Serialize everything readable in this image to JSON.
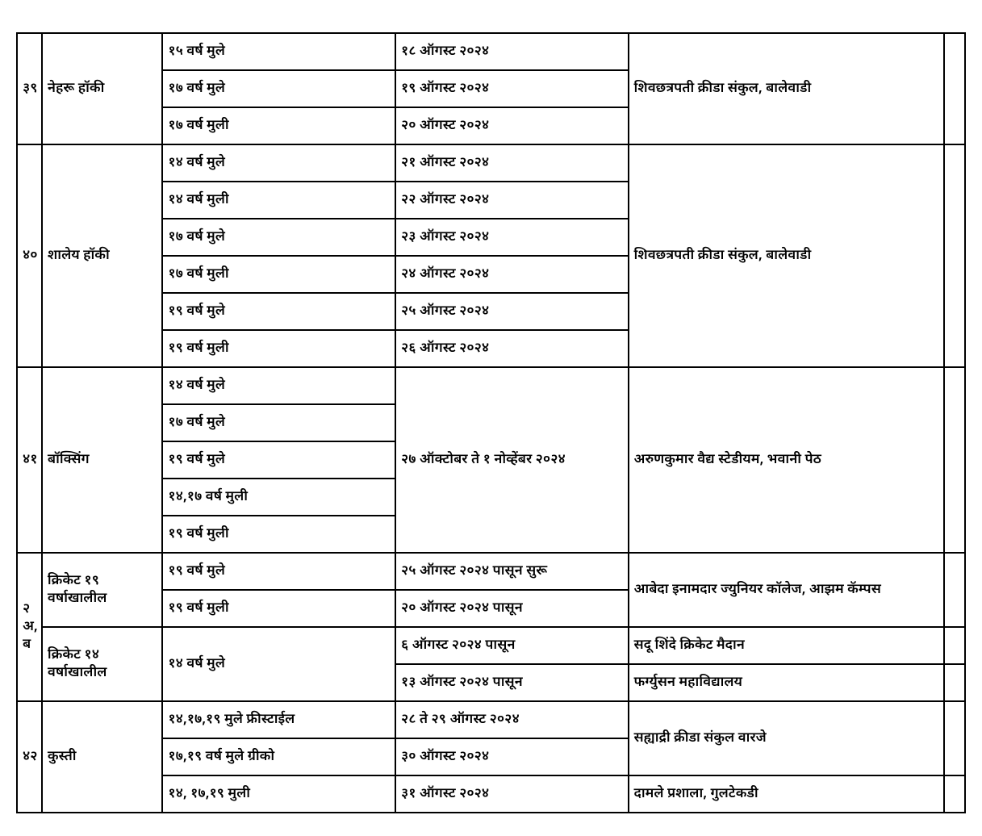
{
  "table": {
    "rows": [
      {
        "sr": "३९",
        "sport": "नेहरू  हॉकी",
        "sr_rowspan": 3,
        "sport_rowspan": 3,
        "sub": [
          {
            "age": "१५ वर्ष मुले",
            "date": "१८ ऑगस्ट २०२४",
            "venue": "शिवछत्रपती क्रीडा संकुल, बालेवाडी",
            "venue_rowspan": 3
          },
          {
            "age": "१७ वर्ष मुले",
            "date": "१९  ऑगस्ट २०२४"
          },
          {
            "age": "१७ वर्ष मुली",
            "date": "२०  ऑगस्ट २०२४"
          }
        ]
      },
      {
        "sr": "४०",
        "sport": "शालेय हॉकी",
        "sr_rowspan": 6,
        "sport_rowspan": 6,
        "sub": [
          {
            "age": "१४ वर्ष मुले",
            "date": "२१  ऑगस्ट २०२४",
            "venue": "शिवछत्रपती क्रीडा संकुल, बालेवाडी",
            "venue_rowspan": 6
          },
          {
            "age": "१४ वर्ष मुली",
            "date": "२२  ऑगस्ट २०२४"
          },
          {
            "age": "१७ वर्ष मुले",
            "date": "२३  ऑगस्ट २०२४"
          },
          {
            "age": "१७ वर्ष मुली",
            "date": "२४  ऑगस्ट २०२४"
          },
          {
            "age": "१९  वर्ष मुले",
            "date": "२५  ऑगस्ट २०२४"
          },
          {
            "age": "१९  वर्ष मुली",
            "date": "२६  ऑगस्ट २०२४"
          }
        ]
      },
      {
        "sr": "४१",
        "sport": "बॉक्सिंग",
        "sr_rowspan": 5,
        "sport_rowspan": 5,
        "sub": [
          {
            "age": "१४ वर्ष मुले",
            "date": "२७   ऑक्टोबर  ते १ नोव्हेंबर २०२४",
            "date_rowspan": 5,
            "venue": "अरुणकुमार वैद्य स्टेडीयम, भवानी पेठ",
            "venue_rowspan": 5
          },
          {
            "age": "१७ वर्ष मुले"
          },
          {
            "age": "१९ वर्ष मुले"
          },
          {
            "age": "१४,१७ वर्ष मुली"
          },
          {
            "age": "१९ वर्ष मुली"
          }
        ]
      },
      {
        "sr": "२ अ, ब",
        "sport_entries": [
          {
            "label": "क्रिकेट  १९ वर्षाखालील",
            "rowspan": 2
          },
          {
            "label": "क्रिकेट  १४ वर्षाखालील",
            "rowspan": 2
          }
        ],
        "sr_rowspan": 4,
        "sub": [
          {
            "age": "१९ वर्ष मुले",
            "date": "२५ ऑगस्ट २०२४ पासून सुरू",
            "venue": "आबेदा इनामदार ज्युनियर कॉलेज, आझम कॅम्पस",
            "venue_rowspan": 2
          },
          {
            "age": "१९ वर्ष मुली",
            "date": "२०  ऑगस्ट २०२४ पासून"
          },
          {
            "age": "१४ वर्ष मुले",
            "age_rowspan": 2,
            "date": "६ ऑगस्ट २०२४ पासून",
            "venue": "सदू शिंदे क्रिकेट मैदान"
          },
          {
            "date": "१३ ऑगस्ट २०२४ पासून",
            "venue": "फर्ग्युसन महाविद्यालय"
          }
        ]
      },
      {
        "sr": "४२",
        "sport": "कुस्ती",
        "sr_rowspan": 3,
        "sport_rowspan": 3,
        "sub": [
          {
            "age": "१४,१७,१९  मुले फ्रीस्टाईल",
            "date": "२८ ते  २९ ऑगस्ट  २०२४",
            "venue": "सह्याद्री क्रीडा संकुल वारजे",
            "venue_rowspan": 2
          },
          {
            "age": "१७,१९ वर्ष मुले ग्रीको",
            "date": "३० ऑगस्ट २०२४"
          },
          {
            "age": "१४, १७,१९ मुली",
            "date": "३१ ऑगस्ट  २०२४",
            "venue": "दामले प्रशाला, गुलटेकडी"
          }
        ]
      }
    ],
    "colors": {
      "border": "#000000",
      "text": "#000000",
      "background": "#ffffff"
    },
    "col_widths": {
      "sr": 30,
      "sport": 145,
      "age": 280,
      "date": 280,
      "venue": 380,
      "extra": 25
    },
    "font_size": 17
  }
}
